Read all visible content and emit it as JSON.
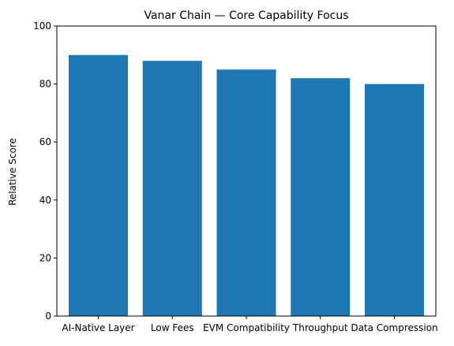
{
  "chart_data": {
    "type": "bar",
    "title": "Vanar Chain — Core Capability Focus",
    "xlabel": "",
    "ylabel": "Relative Score",
    "categories": [
      "AI-Native Layer",
      "Low Fees",
      "EVM Compatibility",
      "Throughput",
      "Data Compression"
    ],
    "values": [
      90,
      88,
      85,
      82,
      80
    ],
    "ylim": [
      0,
      100
    ],
    "yticks": [
      0,
      20,
      40,
      60,
      80,
      100
    ],
    "bar_color": "#1f77b4",
    "grid": false,
    "legend": "none"
  }
}
